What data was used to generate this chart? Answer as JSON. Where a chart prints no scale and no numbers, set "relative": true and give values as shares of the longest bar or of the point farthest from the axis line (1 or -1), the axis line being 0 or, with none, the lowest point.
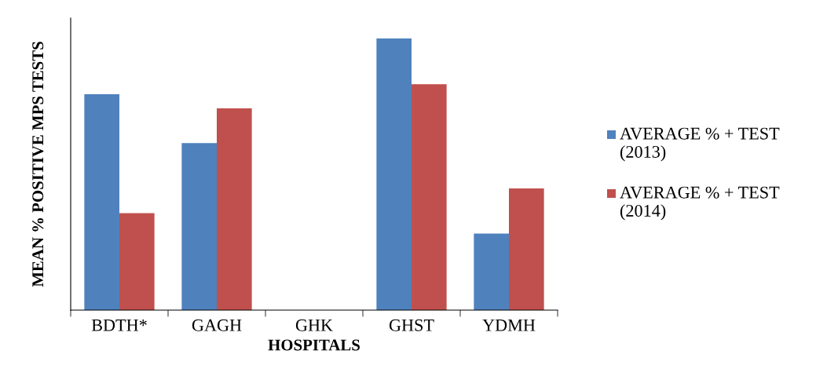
{
  "chart_data": {
    "type": "bar",
    "xlabel": "HOSPITALS",
    "ylabel": "MEAN % POSITIVE MPS TESTS",
    "relative": true,
    "categories": [
      "BDTH*",
      "GAGH",
      "GHK",
      "GHST",
      "YDMH"
    ],
    "series": [
      {
        "name": "AVERAGE % + TEST (2013)",
        "color": "#4f81bd",
        "values": [
          0.795,
          0.615,
          0,
          1,
          0.282
        ]
      },
      {
        "name": "AVERAGE % + TEST (2014)",
        "color": "#c0504d",
        "values": [
          0.357,
          0.743,
          0,
          0.832,
          0.448
        ]
      }
    ],
    "legend": "right",
    "grid": false
  }
}
